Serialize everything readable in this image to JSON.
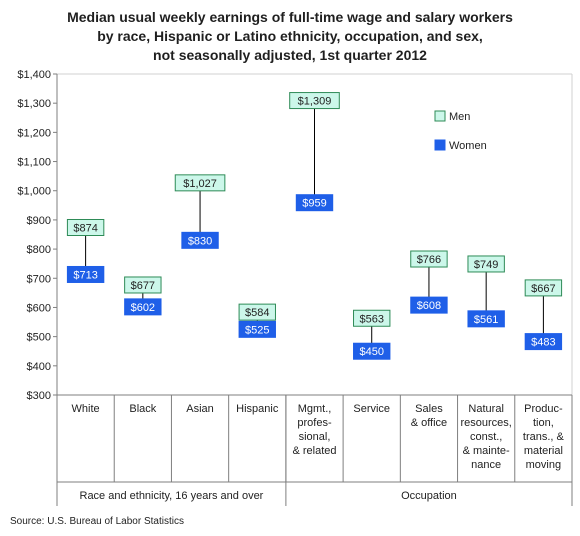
{
  "title_lines": [
    "Median usual weekly earnings of full-time wage and salary workers",
    "by race, Hispanic or Latino ethnicity, occupation, and sex,",
    "not seasonally adjusted, 1st quarter 2012"
  ],
  "source": "Source: U.S. Bureau of Labor Statistics",
  "colors": {
    "men_fill": "#ccf7ea",
    "men_border": "#2e8b57",
    "women_fill": "#1f5fe8",
    "women_text": "#ffffff",
    "line": "#000000",
    "axis": "#7f7f7f"
  },
  "chart_data": {
    "type": "range dot plot",
    "ylim": [
      300,
      1400
    ],
    "ytick_step": 100,
    "ytick_labels": [
      "$300",
      "$400",
      "$500",
      "$600",
      "$700",
      "$800",
      "$900",
      "$1,000",
      "$1,100",
      "$1,200",
      "$1,300",
      "$1,400"
    ],
    "legend_position": "top-right",
    "series_names": [
      "Men",
      "Women"
    ],
    "categories": [
      {
        "label": "White",
        "men": 874,
        "women": 713,
        "men_label": "$874",
        "women_label": "$713"
      },
      {
        "label": "Black",
        "men": 677,
        "women": 602,
        "men_label": "$677",
        "women_label": "$602"
      },
      {
        "label": "Asian",
        "men": 1027,
        "women": 830,
        "men_label": "$1,027",
        "women_label": "$830"
      },
      {
        "label": "Hispanic",
        "men": 584,
        "women": 525,
        "men_label": "$584",
        "women_label": "$525"
      },
      {
        "label": "Mgmt., profes- sional, & related",
        "men": 1309,
        "women": 959,
        "men_label": "$1,309",
        "women_label": "$959"
      },
      {
        "label": "Service",
        "men": 563,
        "women": 450,
        "men_label": "$563",
        "women_label": "$450"
      },
      {
        "label": "Sales & office",
        "men": 766,
        "women": 608,
        "men_label": "$766",
        "women_label": "$608"
      },
      {
        "label": "Natural resources, const., & mainte- nance",
        "men": 749,
        "women": 561,
        "men_label": "$749",
        "women_label": "$561"
      },
      {
        "label": "Produc- tion, trans., & material moving",
        "men": 667,
        "women": 483,
        "men_label": "$667",
        "women_label": "$483"
      }
    ],
    "category_label_lines": [
      [
        "White"
      ],
      [
        "Black"
      ],
      [
        "Asian"
      ],
      [
        "Hispanic"
      ],
      [
        "Mgmt.,",
        "profes-",
        "sional,",
        "& related"
      ],
      [
        "Service"
      ],
      [
        "Sales",
        "& office"
      ],
      [
        "Natural",
        "resources,",
        "const.,",
        "& mainte-",
        "nance"
      ],
      [
        "Produc-",
        "tion,",
        "trans., &",
        "material",
        "moving"
      ]
    ],
    "groups": [
      {
        "label": "Race and ethnicity, 16 years and over",
        "categories": 4
      },
      {
        "label": "Occupation",
        "categories": 5
      }
    ]
  }
}
